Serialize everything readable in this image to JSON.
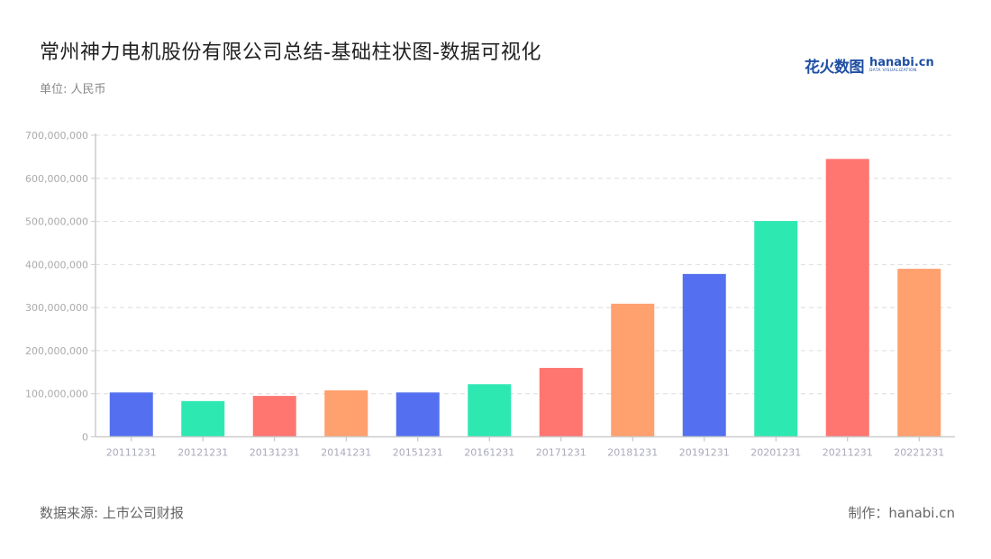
{
  "header": {
    "title": "常州神力电机股份有限公司总结-基础柱状图-数据可视化",
    "unit": "单位: 人民币",
    "logo_cn": "花火数图",
    "logo_en": "hanabi.cn",
    "logo_sub": "DATA VISUALIZATION"
  },
  "footer": {
    "source": "数据来源: 上市公司财报",
    "credit": "制作：hanabi.cn"
  },
  "colors": [
    "#5470f0",
    "#2ee8b2",
    "#ff7670",
    "#ffa06f"
  ],
  "chart_data": {
    "type": "bar",
    "title": "常州神力电机股份有限公司总结-基础柱状图-数据可视化",
    "xlabel": "",
    "ylabel": "单位: 人民币",
    "categories": [
      "20111231",
      "20121231",
      "20131231",
      "20141231",
      "20151231",
      "20161231",
      "20171231",
      "20181231",
      "20191231",
      "20201231",
      "20211231",
      "20221231"
    ],
    "values": [
      103000000,
      83000000,
      95000000,
      108000000,
      103000000,
      122000000,
      160000000,
      309000000,
      378000000,
      501000000,
      645000000,
      390000000
    ],
    "ylim": [
      0,
      700000000
    ],
    "yticks": [
      "0",
      "100,000,000",
      "200,000,000",
      "300,000,000",
      "400,000,000",
      "500,000,000",
      "600,000,000",
      "700,000,000"
    ],
    "grid": true,
    "legend": "none"
  }
}
